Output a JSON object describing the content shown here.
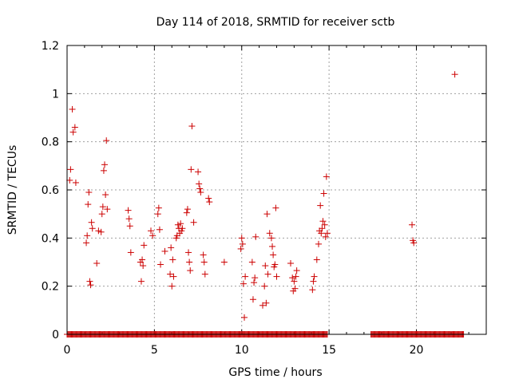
{
  "chart_data": {
    "type": "scatter",
    "title": "Day 114 of 2018, SRMTID for receiver sctb",
    "xlabel": "GPS time / hours",
    "ylabel": "SRMTID / TECUs",
    "xlim": [
      0,
      24
    ],
    "ylim": [
      0,
      1.2
    ],
    "xticks": [
      0,
      5,
      10,
      15,
      20
    ],
    "xtick_labels": [
      "0",
      "5",
      "10",
      "15",
      "20"
    ],
    "yticks": [
      0,
      0.2,
      0.4,
      0.6,
      0.8,
      1.0,
      1.2
    ],
    "ytick_labels": [
      "0",
      "0.2",
      "0.4",
      "0.6",
      "0.8",
      "1",
      "1.2"
    ],
    "grid": true,
    "marker": "+",
    "color": "#cc0000",
    "zero_ranges": [
      [
        0.0,
        14.9
      ],
      [
        17.4,
        22.7
      ]
    ],
    "series": [
      {
        "name": "SRMTID",
        "x": [
          0.15,
          0.2,
          0.3,
          0.35,
          0.45,
          0.5,
          1.1,
          1.15,
          1.2,
          1.25,
          1.3,
          1.35,
          1.4,
          1.45,
          1.7,
          1.8,
          1.95,
          2.0,
          2.05,
          2.1,
          2.15,
          2.2,
          2.25,
          2.3,
          3.5,
          3.55,
          3.6,
          3.65,
          4.2,
          4.25,
          4.3,
          4.35,
          4.4,
          4.8,
          4.9,
          5.2,
          5.25,
          5.3,
          5.35,
          5.6,
          5.9,
          5.95,
          6.0,
          6.05,
          6.1,
          6.25,
          6.3,
          6.35,
          6.4,
          6.45,
          6.5,
          6.55,
          6.6,
          6.85,
          6.9,
          6.95,
          7.0,
          7.05,
          7.1,
          7.15,
          7.25,
          7.5,
          7.55,
          7.6,
          7.65,
          7.8,
          7.85,
          7.9,
          8.1,
          8.15,
          9.0,
          9.95,
          10.0,
          10.05,
          10.1,
          10.15,
          10.2,
          10.6,
          10.65,
          10.7,
          10.75,
          10.8,
          11.2,
          11.3,
          11.35,
          11.4,
          11.45,
          11.5,
          11.6,
          11.7,
          11.75,
          11.8,
          11.85,
          11.9,
          11.95,
          12.0,
          12.8,
          12.9,
          12.95,
          13.0,
          13.05,
          13.1,
          13.15,
          14.05,
          14.1,
          14.15,
          14.3,
          14.4,
          14.45,
          14.5,
          14.55,
          14.6,
          14.65,
          14.7,
          14.75,
          14.8,
          14.85,
          14.9,
          19.75,
          19.8,
          19.85,
          22.2
        ],
        "y": [
          0.64,
          0.685,
          0.935,
          0.84,
          0.86,
          0.63,
          0.38,
          0.41,
          0.54,
          0.59,
          0.22,
          0.205,
          0.465,
          0.44,
          0.295,
          0.43,
          0.425,
          0.5,
          0.53,
          0.68,
          0.705,
          0.58,
          0.805,
          0.52,
          0.515,
          0.48,
          0.45,
          0.34,
          0.3,
          0.22,
          0.31,
          0.285,
          0.37,
          0.43,
          0.41,
          0.5,
          0.525,
          0.435,
          0.29,
          0.345,
          0.25,
          0.36,
          0.2,
          0.31,
          0.24,
          0.4,
          0.41,
          0.455,
          0.44,
          0.42,
          0.46,
          0.43,
          0.44,
          0.505,
          0.52,
          0.34,
          0.3,
          0.265,
          0.685,
          0.865,
          0.465,
          0.675,
          0.625,
          0.605,
          0.59,
          0.33,
          0.3,
          0.25,
          0.565,
          0.55,
          0.3,
          0.355,
          0.4,
          0.375,
          0.21,
          0.07,
          0.24,
          0.3,
          0.145,
          0.215,
          0.235,
          0.405,
          0.12,
          0.2,
          0.285,
          0.13,
          0.5,
          0.25,
          0.42,
          0.4,
          0.365,
          0.33,
          0.28,
          0.29,
          0.525,
          0.24,
          0.295,
          0.235,
          0.18,
          0.22,
          0.19,
          0.24,
          0.265,
          0.185,
          0.22,
          0.24,
          0.31,
          0.375,
          0.43,
          0.535,
          0.42,
          0.44,
          0.47,
          0.585,
          0.455,
          0.405,
          0.655,
          0.42,
          0.455,
          0.39,
          0.38,
          1.08
        ]
      }
    ]
  }
}
